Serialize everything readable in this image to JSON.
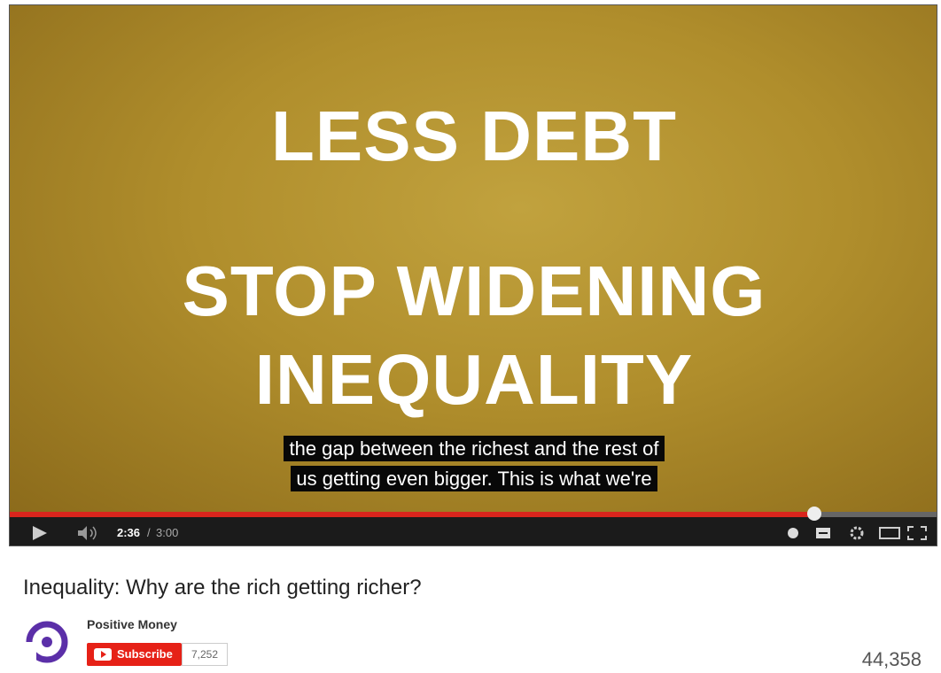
{
  "video": {
    "slide_lines": [
      "LESS DEBT",
      "STOP WIDENING",
      "INEQUALITY"
    ],
    "captions": [
      "the gap between the richest and the rest of",
      "us getting even bigger. This is what we're"
    ],
    "current_time": "2:36",
    "time_separator": "/",
    "duration": "3:00"
  },
  "info": {
    "title": "Inequality: Why are the rich getting richer?",
    "channel": "Positive Money",
    "subscribe_label": "Subscribe",
    "subscriber_count": "7,252",
    "views": "44,358"
  }
}
